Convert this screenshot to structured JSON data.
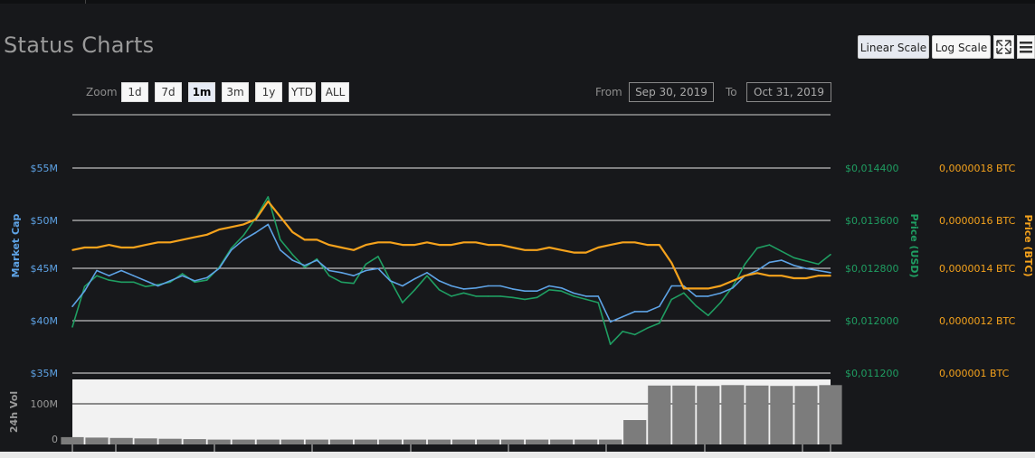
{
  "title": "Status Charts",
  "controls": {
    "linear_label": "Linear Scale",
    "log_label": "Log Scale",
    "zoom_label": "Zoom",
    "zoom_buttons": [
      "1d",
      "7d",
      "1m",
      "3m",
      "1y",
      "YTD",
      "ALL"
    ],
    "zoom_selected": "1m",
    "from_label": "From",
    "from_value": "Sep 30, 2019",
    "to_label": "To",
    "to_value": "Oct 31, 2019"
  },
  "colors": {
    "market_cap": "#5ea3e6",
    "price_usd": "#1f9e62",
    "price_btc": "#f5a21c",
    "volume": "#7c7c7c"
  },
  "chart_data": {
    "type": "line",
    "axes": {
      "market_cap": {
        "label": "Market Cap",
        "ticks": [
          "$35M",
          "$40M",
          "$45M",
          "$50M",
          "$55M"
        ],
        "range": [
          35,
          55
        ],
        "unit": "M USD"
      },
      "price_usd": {
        "label": "Price (USD)",
        "ticks": [
          "$0,011200",
          "$0,012000",
          "$0,012800",
          "$0,013600",
          "$0,014400"
        ],
        "range": [
          0.0112,
          0.0144
        ]
      },
      "price_btc": {
        "label": "Price (BTC)",
        "ticks": [
          "0,000001 BTC",
          "0,0000012 BTC",
          "0,0000014 BTC",
          "0,0000016 BTC",
          "0,0000018 BTC"
        ],
        "range": [
          1e-06,
          1.8e-06
        ]
      },
      "volume": {
        "label": "24h Vol",
        "ticks": [
          "0",
          "100M"
        ],
        "range": [
          0,
          160
        ]
      }
    },
    "x_range": [
      "Sep 30, 2019",
      "Oct 31, 2019"
    ],
    "grid": true,
    "series": [
      {
        "name": "Market Cap",
        "axis": "market_cap",
        "x_days": [
          0,
          0.5,
          1,
          1.5,
          2,
          2.5,
          3,
          3.5,
          4,
          4.5,
          5,
          5.5,
          6,
          6.5,
          7,
          7.5,
          8,
          8.5,
          9,
          9.5,
          10,
          10.5,
          11,
          11.5,
          12,
          12.5,
          13,
          13.5,
          14,
          14.5,
          15,
          15.5,
          16,
          16.5,
          17,
          17.5,
          18,
          18.5,
          19,
          19.5,
          20,
          20.5,
          21,
          21.5,
          22,
          22.5,
          23,
          23.5,
          24,
          24.5,
          25,
          25.5,
          26,
          26.5,
          27,
          27.5,
          28,
          28.5,
          29,
          29.5,
          30,
          30.5,
          31
        ],
        "values": [
          41.5,
          43,
          45,
          44.5,
          45,
          44.5,
          44,
          43.5,
          44,
          44.5,
          44,
          44.3,
          45.2,
          47,
          48,
          48.7,
          49.5,
          47,
          46,
          45.5,
          46,
          45,
          44.8,
          44.5,
          45,
          45.2,
          44,
          43.5,
          44.2,
          44.8,
          44,
          43.5,
          43.2,
          43.3,
          43.5,
          43.5,
          43.2,
          43,
          43,
          43.5,
          43.3,
          42.8,
          42.5,
          42.5,
          40,
          40.5,
          41,
          41,
          41.5,
          43.5,
          43.5,
          42.5,
          42.5,
          42.8,
          43.3,
          44.5,
          45,
          45.8,
          46,
          45.5,
          45.2,
          45,
          44.8
        ]
      },
      {
        "name": "Price (USD)",
        "axis": "price_usd",
        "x_days": [
          0,
          0.5,
          1,
          1.5,
          2,
          2.5,
          3,
          3.5,
          4,
          4.5,
          5,
          5.5,
          6,
          6.5,
          7,
          7.5,
          8,
          8.5,
          9,
          9.5,
          10,
          10.5,
          11,
          11.5,
          12,
          12.5,
          13,
          13.5,
          14,
          14.5,
          15,
          15.5,
          16,
          16.5,
          17,
          17.5,
          18,
          18.5,
          19,
          19.5,
          20,
          20.5,
          21,
          21.5,
          22,
          22.5,
          23,
          23.5,
          24,
          24.5,
          25,
          25.5,
          26,
          26.5,
          27,
          27.5,
          28,
          28.5,
          29,
          29.5,
          30,
          30.5,
          31
        ],
        "values": [
          0.01192,
          0.01255,
          0.01272,
          0.01265,
          0.01262,
          0.01262,
          0.01255,
          0.01258,
          0.01262,
          0.01275,
          0.01262,
          0.01265,
          0.01285,
          0.01315,
          0.01335,
          0.01362,
          0.01395,
          0.01328,
          0.01305,
          0.01285,
          0.01298,
          0.01272,
          0.01262,
          0.0126,
          0.0129,
          0.01302,
          0.01265,
          0.0123,
          0.0125,
          0.01272,
          0.0125,
          0.0124,
          0.01245,
          0.0124,
          0.0124,
          0.0124,
          0.01238,
          0.01235,
          0.01238,
          0.0125,
          0.01248,
          0.0124,
          0.01235,
          0.0123,
          0.01165,
          0.01185,
          0.0118,
          0.0119,
          0.01198,
          0.01235,
          0.01245,
          0.01225,
          0.0121,
          0.0123,
          0.01255,
          0.0129,
          0.01315,
          0.0132,
          0.0131,
          0.013,
          0.01295,
          0.0129,
          0.01305
        ]
      },
      {
        "name": "Price (BTC)",
        "axis": "price_btc",
        "x_days": [
          0,
          0.5,
          1,
          1.5,
          2,
          2.5,
          3,
          3.5,
          4,
          4.5,
          5,
          5.5,
          6,
          6.5,
          7,
          7.5,
          8,
          8.5,
          9,
          9.5,
          10,
          10.5,
          11,
          11.5,
          12,
          12.5,
          13,
          13.5,
          14,
          14.5,
          15,
          15.5,
          16,
          16.5,
          17,
          17.5,
          18,
          18.5,
          19,
          19.5,
          20,
          20.5,
          21,
          21.5,
          22,
          22.5,
          23,
          23.5,
          24,
          24.5,
          25,
          25.5,
          26,
          26.5,
          27,
          27.5,
          28,
          28.5,
          29,
          29.5,
          30,
          30.5,
          31
        ],
        "values": [
          1.48e-06,
          1.49e-06,
          1.49e-06,
          1.5e-06,
          1.49e-06,
          1.49e-06,
          1.5e-06,
          1.51e-06,
          1.51e-06,
          1.52e-06,
          1.53e-06,
          1.54e-06,
          1.56e-06,
          1.57e-06,
          1.58e-06,
          1.6e-06,
          1.67e-06,
          1.61e-06,
          1.55e-06,
          1.52e-06,
          1.52e-06,
          1.5e-06,
          1.49e-06,
          1.48e-06,
          1.5e-06,
          1.51e-06,
          1.51e-06,
          1.5e-06,
          1.5e-06,
          1.51e-06,
          1.5e-06,
          1.5e-06,
          1.51e-06,
          1.51e-06,
          1.5e-06,
          1.5e-06,
          1.49e-06,
          1.48e-06,
          1.48e-06,
          1.49e-06,
          1.48e-06,
          1.47e-06,
          1.47e-06,
          1.49e-06,
          1.5e-06,
          1.51e-06,
          1.51e-06,
          1.5e-06,
          1.5e-06,
          1.43e-06,
          1.33e-06,
          1.33e-06,
          1.33e-06,
          1.34e-06,
          1.36e-06,
          1.38e-06,
          1.39e-06,
          1.38e-06,
          1.38e-06,
          1.37e-06,
          1.37e-06,
          1.38e-06,
          1.38e-06
        ]
      },
      {
        "name": "24h Vol",
        "axis": "volume",
        "x_days": [
          0,
          1,
          2,
          3,
          4,
          5,
          6,
          7,
          8,
          9,
          10,
          11,
          12,
          13,
          14,
          15,
          16,
          17,
          18,
          19,
          20,
          21,
          22,
          23,
          24,
          25,
          26,
          27,
          28,
          29,
          30,
          31
        ],
        "values": [
          18,
          17,
          16,
          15,
          14,
          13,
          12,
          12,
          12,
          12,
          12,
          12,
          12,
          12,
          12,
          12,
          12,
          12,
          12,
          12,
          12,
          12,
          12,
          60,
          145,
          145,
          144,
          146,
          145,
          144,
          144,
          146
        ]
      }
    ]
  }
}
